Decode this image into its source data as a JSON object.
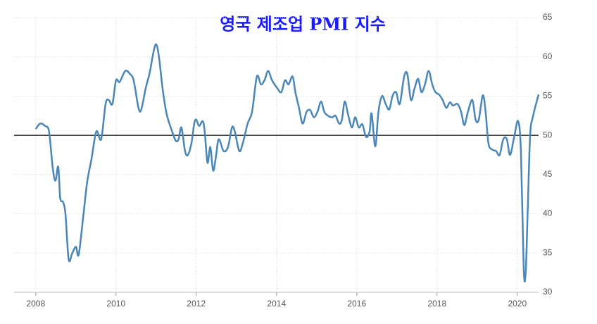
{
  "chart_data": {
    "type": "line",
    "title": "영국 제조업 PMI 지수",
    "x": [
      2008.0,
      2008.11,
      2008.23,
      2008.33,
      2008.42,
      2008.49,
      2008.56,
      2008.61,
      2008.68,
      2008.74,
      2008.82,
      2008.91,
      2009.0,
      2009.07,
      2009.18,
      2009.28,
      2009.39,
      2009.51,
      2009.63,
      2009.74,
      2009.82,
      2009.91,
      2010.0,
      2010.09,
      2010.23,
      2010.35,
      2010.44,
      2010.56,
      2010.63,
      2010.74,
      2010.84,
      2010.93,
      2011.0,
      2011.07,
      2011.16,
      2011.25,
      2011.33,
      2011.42,
      2011.49,
      2011.56,
      2011.63,
      2011.72,
      2011.79,
      2011.88,
      2011.95,
      2012.0,
      2012.07,
      2012.16,
      2012.21,
      2012.28,
      2012.35,
      2012.42,
      2012.49,
      2012.56,
      2012.68,
      2012.79,
      2012.89,
      2012.96,
      2013.07,
      2013.16,
      2013.28,
      2013.39,
      2013.51,
      2013.61,
      2013.7,
      2013.79,
      2013.89,
      2014.02,
      2014.12,
      2014.21,
      2014.3,
      2014.4,
      2014.47,
      2014.56,
      2014.65,
      2014.75,
      2014.84,
      2014.93,
      2015.02,
      2015.11,
      2015.19,
      2015.28,
      2015.39,
      2015.47,
      2015.56,
      2015.63,
      2015.7,
      2015.79,
      2015.88,
      2015.96,
      2016.05,
      2016.14,
      2016.23,
      2016.32,
      2016.37,
      2016.46,
      2016.54,
      2016.63,
      2016.72,
      2016.81,
      2016.89,
      2016.98,
      2017.07,
      2017.18,
      2017.26,
      2017.35,
      2017.44,
      2017.53,
      2017.61,
      2017.7,
      2017.79,
      2017.88,
      2017.96,
      2018.05,
      2018.14,
      2018.23,
      2018.32,
      2018.4,
      2018.51,
      2018.6,
      2018.68,
      2018.77,
      2018.88,
      2018.96,
      2019.04,
      2019.14,
      2019.21,
      2019.28,
      2019.37,
      2019.47,
      2019.56,
      2019.65,
      2019.74,
      2019.82,
      2019.93,
      2020.02,
      2020.09,
      2020.16,
      2020.21,
      2020.26,
      2020.32,
      2020.39,
      2020.53
    ],
    "series": [
      {
        "color": "#4a86b8",
        "values": [
          50.8,
          51.5,
          51.2,
          50.5,
          46,
          44.2,
          46,
          42,
          41.5,
          40,
          34.2,
          35,
          35.8,
          34.8,
          39.5,
          44,
          47,
          50.5,
          49.5,
          54,
          54.5,
          54,
          57,
          56.8,
          58.2,
          57.8,
          57,
          53.5,
          53.3,
          56,
          58,
          60.5,
          61.6,
          60,
          56,
          53,
          51.5,
          50.2,
          49.3,
          49.5,
          51,
          48,
          47.5,
          49,
          51.5,
          52,
          51.2,
          51.8,
          50.5,
          46.5,
          48.5,
          45.5,
          47.3,
          49.5,
          48,
          48.5,
          51,
          50.5,
          48,
          49,
          51.5,
          53,
          57.5,
          56.5,
          57,
          58.2,
          57,
          56,
          55.5,
          57,
          56.5,
          57.5,
          55.5,
          53.5,
          51.5,
          53,
          53.2,
          52.3,
          53,
          54.3,
          53,
          52.5,
          52.3,
          52.5,
          51.5,
          52,
          54.3,
          52.5,
          51,
          52.3,
          51,
          51.4,
          49.8,
          50.5,
          52.8,
          48.6,
          53,
          55,
          54,
          53.3,
          55,
          55.5,
          54,
          57.5,
          57.8,
          54.5,
          56,
          57.2,
          55.5,
          56.5,
          58.2,
          56.5,
          55.5,
          55.2,
          54.5,
          53.5,
          54.2,
          53.8,
          54,
          53,
          51.3,
          53,
          54.5,
          52,
          52,
          55.1,
          53,
          49,
          48.2,
          48,
          47.5,
          49.5,
          49.5,
          47.5,
          50,
          51.8,
          48,
          33,
          32.6,
          40.5,
          50,
          52.4,
          55.2
        ]
      }
    ],
    "xlim": [
      2007.46,
      2020.53
    ],
    "xticks": [
      2008,
      2010,
      2012,
      2014,
      2016,
      2018,
      2020
    ],
    "ylim": [
      30,
      65
    ],
    "yticks": [
      30,
      35,
      40,
      45,
      50,
      55,
      60,
      65
    ],
    "reference_line": 50,
    "grid": true
  }
}
